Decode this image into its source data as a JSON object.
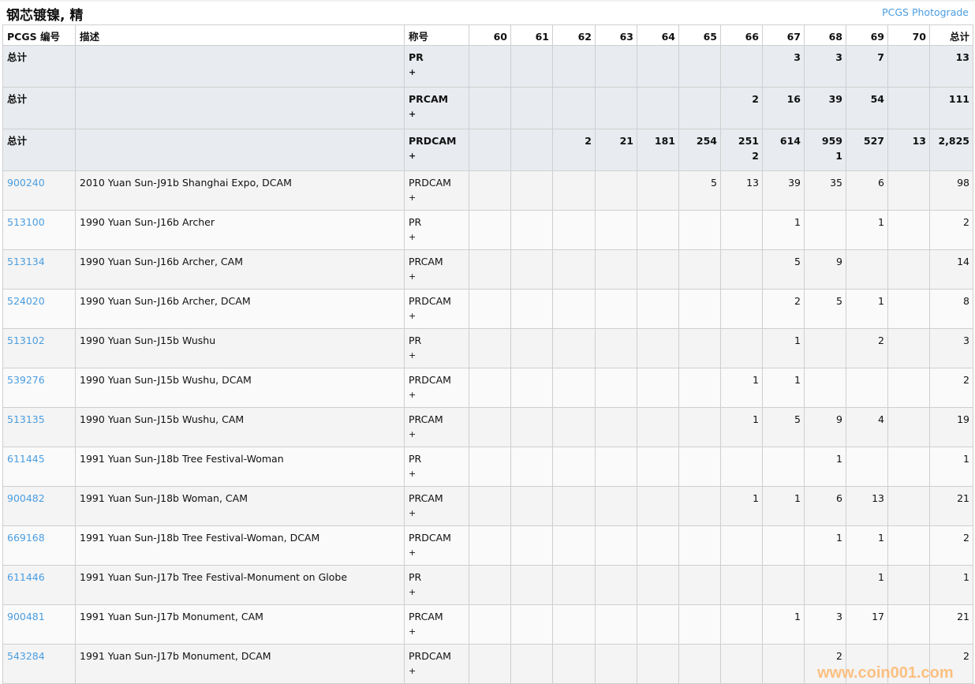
{
  "title": "钢芯镀镍, 精",
  "photograde_link": "PCGS Photograde",
  "columns": {
    "id": "PCGS 编号",
    "desc": "描述",
    "designation": "称号",
    "grades": [
      "60",
      "61",
      "62",
      "63",
      "64",
      "65",
      "66",
      "67",
      "68",
      "69",
      "70"
    ],
    "total": "总计"
  },
  "totals": [
    {
      "label": "总计",
      "designation": "PR",
      "plus": "+",
      "cells": [
        "",
        "",
        "",
        "",
        "",
        "",
        "",
        "3",
        "3",
        "7",
        ""
      ],
      "total": "13"
    },
    {
      "label": "总计",
      "designation": "PRCAM",
      "plus": "+",
      "cells": [
        "",
        "",
        "",
        "",
        "",
        "",
        "2",
        "16",
        "39",
        "54",
        ""
      ],
      "total": "111"
    },
    {
      "label": "总计",
      "designation": "PRDCAM",
      "plus": "+",
      "cells": [
        "",
        "",
        "2",
        "21",
        "181",
        "254",
        "251\n2",
        "614",
        "959\n1",
        "527",
        "13"
      ],
      "total": "2,825"
    }
  ],
  "rows": [
    {
      "id": "900240",
      "desc": "2010 Yuan Sun-J91b Shanghai Expo, DCAM",
      "designation": "PRDCAM",
      "plus": "+",
      "cells": [
        "",
        "",
        "",
        "",
        "",
        "5",
        "13",
        "39",
        "35",
        "6",
        ""
      ],
      "total": "98"
    },
    {
      "id": "513100",
      "desc": "1990 Yuan Sun-J16b Archer",
      "designation": "PR",
      "plus": "+",
      "cells": [
        "",
        "",
        "",
        "",
        "",
        "",
        "",
        "1",
        "",
        "1",
        ""
      ],
      "total": "2"
    },
    {
      "id": "513134",
      "desc": "1990 Yuan Sun-J16b Archer, CAM",
      "designation": "PRCAM",
      "plus": "+",
      "cells": [
        "",
        "",
        "",
        "",
        "",
        "",
        "",
        "5",
        "9",
        "",
        ""
      ],
      "total": "14"
    },
    {
      "id": "524020",
      "desc": "1990 Yuan Sun-J16b Archer, DCAM",
      "designation": "PRDCAM",
      "plus": "+",
      "cells": [
        "",
        "",
        "",
        "",
        "",
        "",
        "",
        "2",
        "5",
        "1",
        ""
      ],
      "total": "8"
    },
    {
      "id": "513102",
      "desc": "1990 Yuan Sun-J15b Wushu",
      "designation": "PR",
      "plus": "+",
      "cells": [
        "",
        "",
        "",
        "",
        "",
        "",
        "",
        "1",
        "",
        "2",
        ""
      ],
      "total": "3"
    },
    {
      "id": "539276",
      "desc": "1990 Yuan Sun-J15b Wushu, DCAM",
      "designation": "PRDCAM",
      "plus": "+",
      "cells": [
        "",
        "",
        "",
        "",
        "",
        "",
        "1",
        "1",
        "",
        "",
        ""
      ],
      "total": "2"
    },
    {
      "id": "513135",
      "desc": "1990 Yuan Sun-J15b Wushu, CAM",
      "designation": "PRCAM",
      "plus": "+",
      "cells": [
        "",
        "",
        "",
        "",
        "",
        "",
        "1",
        "5",
        "9",
        "4",
        ""
      ],
      "total": "19"
    },
    {
      "id": "611445",
      "desc": "1991 Yuan Sun-J18b Tree Festival-Woman",
      "designation": "PR",
      "plus": "+",
      "cells": [
        "",
        "",
        "",
        "",
        "",
        "",
        "",
        "",
        "1",
        "",
        ""
      ],
      "total": "1"
    },
    {
      "id": "900482",
      "desc": "1991 Yuan Sun-J18b Woman, CAM",
      "designation": "PRCAM",
      "plus": "+",
      "cells": [
        "",
        "",
        "",
        "",
        "",
        "",
        "1",
        "1",
        "6",
        "13",
        ""
      ],
      "total": "21"
    },
    {
      "id": "669168",
      "desc": "1991 Yuan Sun-J18b Tree Festival-Woman, DCAM",
      "designation": "PRDCAM",
      "plus": "+",
      "cells": [
        "",
        "",
        "",
        "",
        "",
        "",
        "",
        "",
        "1",
        "1",
        ""
      ],
      "total": "2"
    },
    {
      "id": "611446",
      "desc": "1991 Yuan Sun-J17b Tree Festival-Monument on Globe",
      "designation": "PR",
      "plus": "+",
      "cells": [
        "",
        "",
        "",
        "",
        "",
        "",
        "",
        "",
        "",
        "1",
        ""
      ],
      "total": "1"
    },
    {
      "id": "900481",
      "desc": "1991 Yuan Sun-J17b Monument, CAM",
      "designation": "PRCAM",
      "plus": "+",
      "cells": [
        "",
        "",
        "",
        "",
        "",
        "",
        "",
        "1",
        "3",
        "17",
        ""
      ],
      "total": "21"
    },
    {
      "id": "543284",
      "desc": "1991 Yuan Sun-J17b Monument, DCAM",
      "designation": "PRDCAM",
      "plus": "+",
      "cells": [
        "",
        "",
        "",
        "",
        "",
        "",
        "",
        "",
        "2",
        "",
        ""
      ],
      "total": "2"
    }
  ],
  "watermark": "www.coin001.com"
}
